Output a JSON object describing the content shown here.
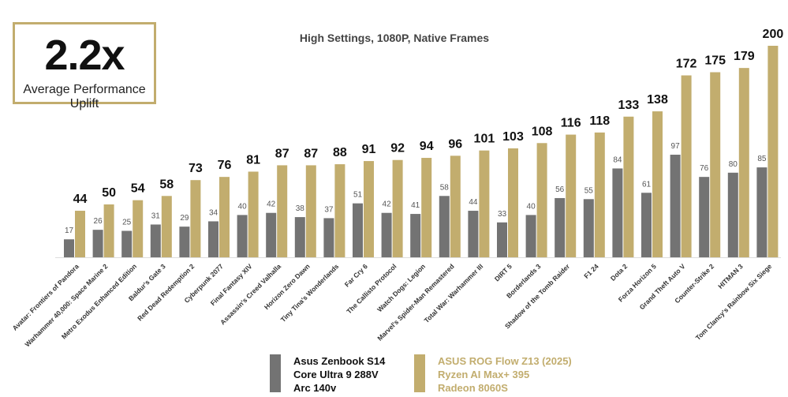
{
  "uplift": {
    "value": "2.2x",
    "label": "Average Performance Uplift"
  },
  "colors": {
    "gray": "#737373",
    "gold": "#c2ad6e",
    "label_dark": "#111111",
    "label_gray": "#555555"
  },
  "legend": {
    "series_a": {
      "lines": [
        "Asus Zenbook S14",
        "Core Ultra 9 288V",
        "Arc 140v"
      ],
      "color": "#737373"
    },
    "series_b": {
      "lines": [
        "ASUS ROG Flow Z13 (2025)",
        "Ryzen AI Max+ 395",
        "Radeon 8060S"
      ],
      "color": "#c2ad6e"
    }
  },
  "chart_data": {
    "type": "bar",
    "title": "High Settings, 1080P, Native Frames",
    "xlabel": "",
    "ylabel": "",
    "ylim": [
      0,
      200
    ],
    "categories": [
      "Avatar: Frontiers of Pandora",
      "Warhammer 40,000: Space Marine 2",
      "Metro Exodus Enhanced Edition",
      "Baldur's Gate 3",
      "Red Dead Redemption 2",
      "Cyberpunk 2077",
      "Final Fantasy XIV",
      "Assassin's Creed Valhalla",
      "Horizon Zero Dawn",
      "Tiny Tina's Wonderlands",
      "Far Cry 6",
      "The Callisto Protocol",
      "Watch Dogs: Legion",
      "Marvel's Spider-Man Remastered",
      "Total War: Warhammer III",
      "DIRT 5",
      "Borderlands 3",
      "Shadow of the Tomb Raider",
      "F1 24",
      "Dota 2",
      "Forza Horizon 5",
      "Grand Theft Auto V",
      "Counter-Strike 2",
      "HITMAN 3",
      "Tom Clancy's Rainbow Six Siege"
    ],
    "series": [
      {
        "name": "Asus Zenbook S14 / Core Ultra 9 288V / Arc 140v",
        "values": [
          17,
          26,
          25,
          31,
          29,
          34,
          40,
          42,
          38,
          37,
          51,
          42,
          41,
          58,
          44,
          33,
          40,
          56,
          55,
          84,
          61,
          97,
          76,
          80,
          85
        ]
      },
      {
        "name": "ASUS ROG Flow Z13 (2025) / Ryzen AI Max+ 395 / Radeon 8060S",
        "values": [
          44,
          50,
          54,
          58,
          73,
          76,
          81,
          87,
          87,
          88,
          91,
          92,
          94,
          96,
          101,
          103,
          108,
          116,
          118,
          133,
          138,
          172,
          175,
          179,
          200
        ]
      }
    ]
  }
}
